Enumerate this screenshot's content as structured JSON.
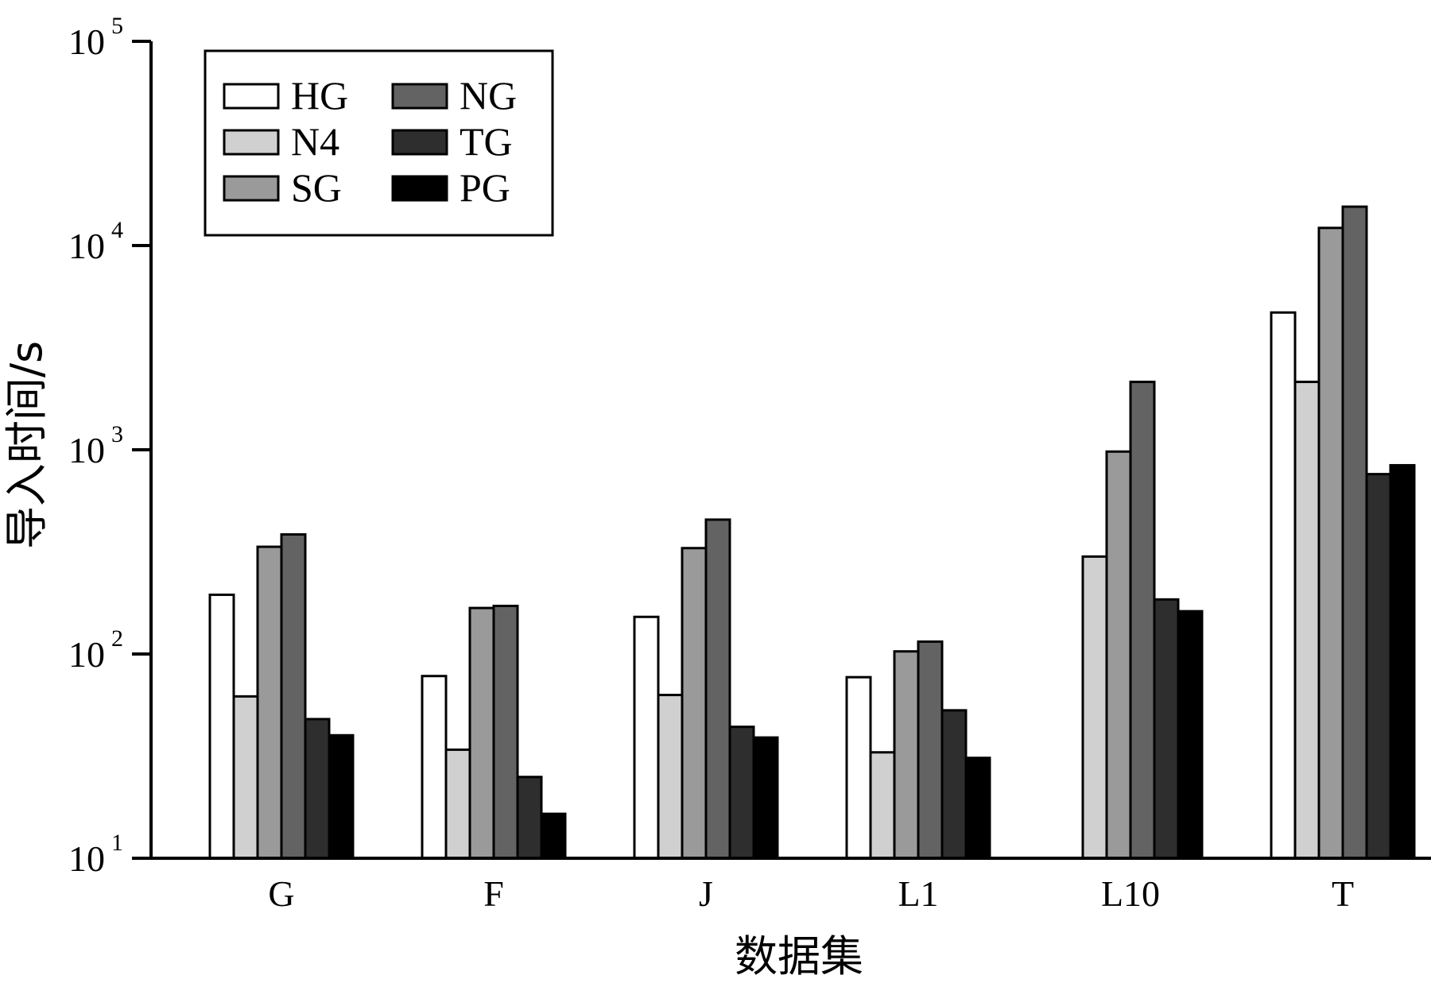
{
  "chart_data": {
    "type": "bar",
    "xlabel": "数据集",
    "ylabel": "导入时间/s",
    "categories": [
      "G",
      "F",
      "J",
      "L1",
      "L10",
      "T"
    ],
    "y_scale": "log",
    "ylim": [
      10,
      100000
    ],
    "y_ticks": [
      {
        "base": "10",
        "exp": "1",
        "value": 10
      },
      {
        "base": "10",
        "exp": "2",
        "value": 100
      },
      {
        "base": "10",
        "exp": "3",
        "value": 1000
      },
      {
        "base": "10",
        "exp": "4",
        "value": 10000
      },
      {
        "base": "10",
        "exp": "5",
        "value": 100000
      }
    ],
    "legend_position": "top-left",
    "series": [
      {
        "name": "HG",
        "color": "#ffffff",
        "values": [
          195,
          78,
          152,
          77,
          null,
          4700
        ]
      },
      {
        "name": "N4",
        "color": "#d0d0d0",
        "values": [
          62,
          34,
          63,
          33,
          300,
          2150
        ]
      },
      {
        "name": "SG",
        "color": "#9a9a9a",
        "values": [
          335,
          168,
          330,
          103,
          980,
          12200
        ]
      },
      {
        "name": "NG",
        "color": "#636363",
        "values": [
          385,
          172,
          455,
          115,
          2150,
          15500
        ]
      },
      {
        "name": "TG",
        "color": "#2e2e2e",
        "values": [
          48,
          25,
          44,
          53,
          185,
          760
        ]
      },
      {
        "name": "PG",
        "color": "#000000",
        "values": [
          40,
          16.5,
          39,
          31,
          162,
          840
        ]
      }
    ]
  }
}
